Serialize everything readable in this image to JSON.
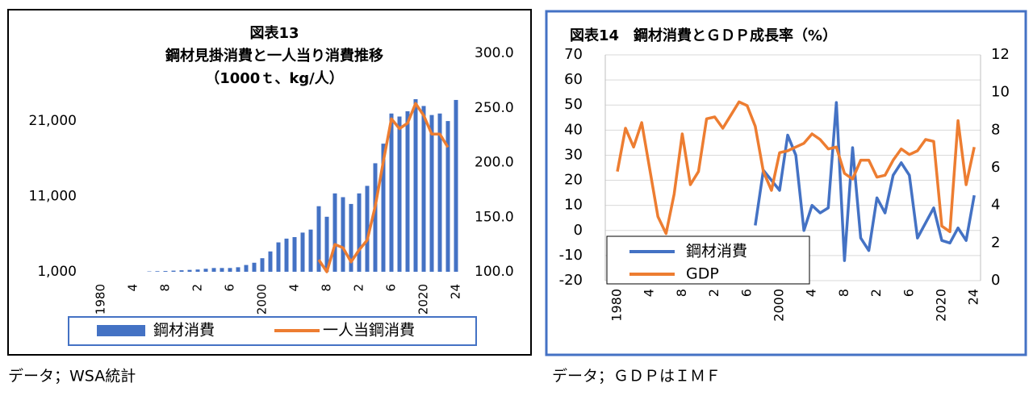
{
  "chart_data": [
    {
      "type": "combo",
      "title": [
        "図表13",
        "鋼材見掛消費と一人当り消費推移",
        "（1000ｔ、kg/人）"
      ],
      "categories": [
        "1980",
        null,
        null,
        null,
        "4",
        null,
        null,
        null,
        "8",
        null,
        null,
        null,
        "2",
        null,
        null,
        null,
        "6",
        null,
        null,
        null,
        "2000",
        null,
        null,
        null,
        "4",
        null,
        null,
        null,
        "8",
        null,
        null,
        null,
        "2",
        null,
        null,
        null,
        "6",
        null,
        null,
        null,
        "2020",
        null,
        null,
        null,
        "24"
      ],
      "series": [
        {
          "name": "鋼材消費",
          "type": "bar",
          "color": "#4472c4",
          "values": [
            null,
            null,
            null,
            null,
            null,
            null,
            1050,
            1080,
            1100,
            1150,
            1200,
            1250,
            1300,
            1400,
            1500,
            1500,
            1500,
            1600,
            1900,
            2200,
            2800,
            3700,
            4900,
            5400,
            5600,
            6200,
            6600,
            9700,
            8300,
            11400,
            10900,
            10000,
            11400,
            12400,
            15400,
            18000,
            22000,
            21600,
            22300,
            23900,
            23000,
            21800,
            22000,
            21000,
            23800
          ]
        },
        {
          "name": "一人当鋼消費",
          "type": "line",
          "axis": "y2",
          "color": "#ed7d31",
          "values": [
            null,
            null,
            null,
            null,
            null,
            null,
            null,
            null,
            null,
            null,
            null,
            null,
            null,
            null,
            null,
            null,
            null,
            null,
            null,
            null,
            null,
            null,
            null,
            null,
            null,
            null,
            null,
            111,
            100,
            125,
            122,
            109,
            120,
            129,
            160,
            201,
            240,
            231,
            236,
            254,
            243,
            226,
            226,
            214,
            null
          ]
        }
      ],
      "ylim": [
        1000,
        30000
      ],
      "yticks": [
        {
          "value": 1000,
          "label": "1,000"
        },
        {
          "value": 11000,
          "label": "11,000"
        },
        {
          "value": 21000,
          "label": "21,000"
        }
      ],
      "y2lim": [
        100,
        300
      ],
      "y2ticks": [
        {
          "value": 100,
          "label": "100.0"
        },
        {
          "value": 150,
          "label": "150.0"
        },
        {
          "value": 200,
          "label": "200.0"
        },
        {
          "value": 250,
          "label": "250.0"
        },
        {
          "value": 300,
          "label": "300.0"
        }
      ],
      "grid": false,
      "legend": "bottom"
    },
    {
      "type": "line",
      "title": [
        "図表14　鋼材消費とＧＤＰ成長率（%）"
      ],
      "categories": [
        "1980",
        null,
        null,
        null,
        "4",
        null,
        null,
        null,
        "8",
        null,
        null,
        null,
        "2",
        null,
        null,
        null,
        "6",
        null,
        null,
        null,
        "2000",
        null,
        null,
        null,
        "4",
        null,
        null,
        null,
        "8",
        null,
        null,
        null,
        "2",
        null,
        null,
        null,
        "6",
        null,
        null,
        null,
        "2020",
        null,
        null,
        null,
        "24"
      ],
      "series": [
        {
          "name": "鋼材消費",
          "type": "line",
          "color": "#4472c4",
          "values": [
            null,
            null,
            null,
            null,
            null,
            null,
            null,
            null,
            null,
            null,
            null,
            null,
            null,
            null,
            null,
            null,
            null,
            2,
            24,
            20,
            16,
            38,
            30,
            0,
            10,
            7,
            9,
            51,
            -12,
            33,
            -3,
            -8,
            13,
            7,
            22,
            27,
            22,
            -3,
            3,
            9,
            -4,
            -5,
            1,
            -4,
            14
          ]
        },
        {
          "name": "GDP",
          "type": "line",
          "axis": "y2",
          "color": "#ed7d31",
          "values": [
            5.8,
            8.1,
            7.1,
            8.4,
            5.9,
            3.4,
            2.5,
            4.6,
            7.8,
            5.1,
            5.8,
            8.6,
            8.7,
            8.1,
            8.8,
            9.5,
            9.3,
            8.2,
            5.8,
            4.8,
            6.8,
            6.9,
            7.1,
            7.3,
            7.8,
            7.5,
            7.0,
            7.1,
            5.7,
            5.4,
            6.4,
            6.4,
            5.5,
            5.6,
            6.4,
            7.0,
            6.7,
            6.9,
            7.5,
            7.4,
            2.9,
            2.6,
            8.5,
            5.1,
            7.1
          ]
        }
      ],
      "ylim": [
        -20,
        70
      ],
      "yticks": [
        -20,
        -10,
        0,
        10,
        20,
        30,
        40,
        50,
        60,
        70
      ],
      "y2lim": [
        0,
        12
      ],
      "y2ticks": [
        0,
        2,
        4,
        6,
        8,
        10,
        12
      ],
      "grid": true,
      "legend": "inside-bottom-left"
    }
  ],
  "captions": [
    "データ；WSA統計",
    "データ；ＧＤＰはＩＭＦ"
  ]
}
